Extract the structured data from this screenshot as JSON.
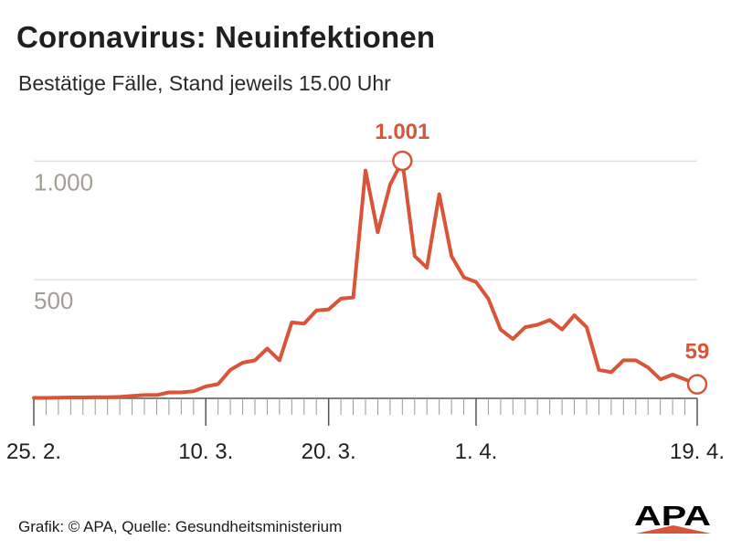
{
  "title": "Coronavirus: Neuinfektionen",
  "subtitle": "Bestätige Fälle, Stand jeweils 15.00 Uhr",
  "footer": "Grafik: © APA, Quelle: Gesundheitsministerium",
  "logo_text": "APA",
  "colors": {
    "line": "#d9553a",
    "grid": "#d4d4d4",
    "ytick": "#a39e93",
    "text": "#1f1f1f",
    "logo": "#000000",
    "logo_accent": "#d9553a"
  },
  "chart_data": {
    "type": "line",
    "title": "Coronavirus: Neuinfektionen",
    "subtitle": "Bestätige Fälle, Stand jeweils 15.00 Uhr",
    "xlabel": "",
    "ylabel": "",
    "ylim": [
      0,
      1001
    ],
    "grid": true,
    "x_tick_labels": [
      "25. 2.",
      "10. 3.",
      "20. 3.",
      "1. 4.",
      "19. 4."
    ],
    "x_tick_label_dates": [
      "2020-02-25",
      "2020-03-10",
      "2020-03-20",
      "2020-04-01",
      "2020-04-19"
    ],
    "y_tick_labels": [
      "500",
      "1.000"
    ],
    "y_tick_values": [
      500,
      1000
    ],
    "annotations": [
      {
        "date": "2020-03-26",
        "value": 1001,
        "label": "1.001",
        "marker": "open-circle"
      },
      {
        "date": "2020-04-19",
        "value": 59,
        "label": "59",
        "marker": "open-circle"
      }
    ],
    "series": [
      {
        "dates": [
          "2020-02-25",
          "2020-02-26",
          "2020-02-27",
          "2020-02-28",
          "2020-02-29",
          "2020-03-01",
          "2020-03-02",
          "2020-03-03",
          "2020-03-04",
          "2020-03-05",
          "2020-03-06",
          "2020-03-07",
          "2020-03-08",
          "2020-03-09",
          "2020-03-10",
          "2020-03-11",
          "2020-03-12",
          "2020-03-13",
          "2020-03-14",
          "2020-03-15",
          "2020-03-16",
          "2020-03-17",
          "2020-03-18",
          "2020-03-19",
          "2020-03-20",
          "2020-03-21",
          "2020-03-22",
          "2020-03-23",
          "2020-03-24",
          "2020-03-25",
          "2020-03-26",
          "2020-03-27",
          "2020-03-28",
          "2020-03-29",
          "2020-03-30",
          "2020-03-31",
          "2020-04-01",
          "2020-04-02",
          "2020-04-03",
          "2020-04-04",
          "2020-04-05",
          "2020-04-06",
          "2020-04-07",
          "2020-04-08",
          "2020-04-09",
          "2020-04-10",
          "2020-04-11",
          "2020-04-12",
          "2020-04-13",
          "2020-04-14",
          "2020-04-15",
          "2020-04-16",
          "2020-04-17",
          "2020-04-18",
          "2020-04-19"
        ],
        "values": [
          2,
          2,
          3,
          4,
          4,
          5,
          5,
          6,
          10,
          14,
          14,
          25,
          25,
          30,
          50,
          60,
          120,
          150,
          160,
          210,
          160,
          320,
          315,
          370,
          375,
          420,
          425,
          960,
          700,
          900,
          1001,
          600,
          550,
          860,
          600,
          510,
          490,
          420,
          290,
          250,
          300,
          310,
          330,
          290,
          350,
          300,
          120,
          110,
          160,
          160,
          130,
          80,
          100,
          80,
          59
        ]
      }
    ]
  }
}
